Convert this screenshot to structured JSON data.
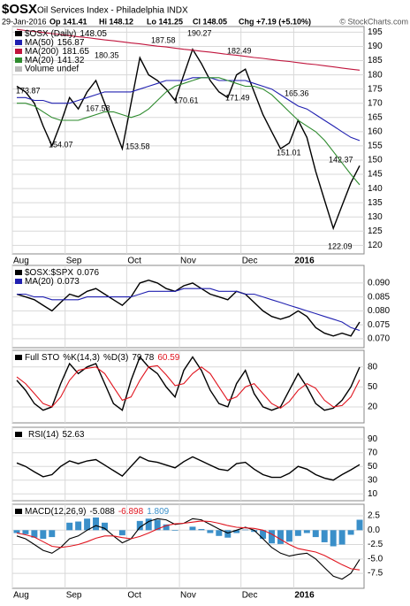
{
  "header": {
    "symbol": "$OSX",
    "name": "Oil Services Index - Philadelphia INDX",
    "date": "29-Jan-2016",
    "quote": [
      "Op 141.41",
      "Hi 148.12",
      "Lo 141.25",
      "Cl 148.05",
      "Chg +7.19 (+5.10%)"
    ],
    "copyright": "© StockCharts.com"
  },
  "chart_data": [
    {
      "type": "line",
      "categories": [
        "Aug",
        null,
        null,
        null,
        null,
        null,
        "Sep",
        null,
        null,
        null,
        null,
        null,
        null,
        "Oct",
        null,
        null,
        null,
        null,
        null,
        "Nov",
        null,
        null,
        null,
        null,
        null,
        null,
        "Dec",
        null,
        null,
        null,
        null,
        null,
        "2016",
        null,
        null,
        null,
        null,
        null,
        null,
        null
      ],
      "series": [
        {
          "name": "$OSX (Daily)",
          "color": "#000000",
          "values": [
            176,
            174,
            170,
            162,
            155,
            163,
            172,
            168,
            174,
            178,
            170,
            162,
            154,
            170,
            186,
            180,
            178,
            175,
            171,
            180,
            189,
            184,
            178,
            174,
            172,
            180,
            182,
            174,
            166,
            160,
            154,
            156,
            164,
            158,
            146,
            136,
            126,
            134,
            142,
            148.05
          ]
        },
        {
          "name": "MA(50)",
          "color": "#2020b0",
          "values": [
            172,
            172,
            171,
            171,
            170,
            170,
            170,
            171,
            172,
            173,
            174,
            174,
            174,
            174,
            175,
            176,
            177,
            178,
            178,
            178,
            179,
            179,
            179,
            178,
            178,
            178,
            178,
            177,
            176,
            175,
            173,
            171,
            169,
            168,
            166,
            164,
            162,
            160,
            158,
            156.87
          ]
        },
        {
          "name": "MA(200)",
          "color": "#c0143c",
          "values": [
            196,
            195.6,
            195.3,
            194.9,
            194.5,
            194.2,
            193.8,
            193.4,
            193.1,
            192.7,
            192.3,
            192,
            191.6,
            191.2,
            190.9,
            190.5,
            190.1,
            189.8,
            189.4,
            189,
            188.7,
            188.3,
            188,
            187.6,
            187.2,
            186.9,
            186.5,
            186.1,
            185.8,
            185.4,
            185,
            184.7,
            184.3,
            183.9,
            183.6,
            183.2,
            182.8,
            182.4,
            182,
            181.65
          ]
        },
        {
          "name": "MA(20)",
          "color": "#2e8b2e",
          "values": [
            170,
            170,
            169,
            167,
            165,
            164,
            164,
            164,
            165,
            166,
            167,
            167,
            166,
            165,
            166,
            168,
            171,
            174,
            176,
            177,
            178,
            179,
            179,
            179,
            178,
            177,
            176,
            176,
            175,
            173,
            170,
            167,
            164,
            162,
            160,
            157,
            153,
            149,
            145,
            141.32
          ]
        }
      ],
      "volume_note": "Volume undef",
      "annotations": [
        "173.87",
        "154.07",
        "167.58",
        "180.35",
        "153.58",
        "187.58",
        "170.61",
        "190.27",
        "182.49",
        "171.49",
        "165.36",
        "151.01",
        "142.37",
        "122.09"
      ],
      "ylim": [
        117,
        197
      ],
      "yticks": [
        120,
        125,
        130,
        135,
        140,
        145,
        150,
        155,
        160,
        165,
        170,
        175,
        180,
        185,
        190,
        195
      ],
      "grid": true
    },
    {
      "type": "line",
      "series": [
        {
          "name": "$OSX:$SPX",
          "color": "#000000",
          "values": [
            0.086,
            0.085,
            0.084,
            0.082,
            0.08,
            0.083,
            0.086,
            0.085,
            0.087,
            0.088,
            0.086,
            0.084,
            0.082,
            0.085,
            0.09,
            0.091,
            0.09,
            0.088,
            0.087,
            0.089,
            0.09,
            0.088,
            0.086,
            0.085,
            0.084,
            0.087,
            0.086,
            0.083,
            0.08,
            0.078,
            0.077,
            0.078,
            0.08,
            0.078,
            0.074,
            0.072,
            0.071,
            0.072,
            0.071,
            0.076
          ]
        },
        {
          "name": "MA(20)",
          "color": "#2020b0",
          "values": [
            0.086,
            0.086,
            0.085,
            0.085,
            0.084,
            0.084,
            0.084,
            0.084,
            0.085,
            0.085,
            0.085,
            0.085,
            0.085,
            0.085,
            0.086,
            0.087,
            0.087,
            0.087,
            0.087,
            0.088,
            0.088,
            0.088,
            0.088,
            0.087,
            0.087,
            0.087,
            0.086,
            0.086,
            0.085,
            0.084,
            0.083,
            0.082,
            0.081,
            0.08,
            0.079,
            0.078,
            0.077,
            0.076,
            0.074,
            0.073
          ]
        }
      ],
      "ylim": [
        0.0668,
        0.0963
      ],
      "yticks": [
        {
          "value": 0.07,
          "label": "0.070"
        },
        {
          "value": 0.075,
          "label": "0.075"
        },
        {
          "value": 0.08,
          "label": "0.080"
        },
        {
          "value": 0.085,
          "label": "0.085"
        },
        {
          "value": 0.09,
          "label": "0.090"
        }
      ],
      "grid": true
    },
    {
      "type": "line",
      "title": "Full STO",
      "series": [
        {
          "name": "%K(14,3)",
          "color": "#000000",
          "values": [
            60,
            45,
            25,
            15,
            20,
            55,
            85,
            70,
            80,
            85,
            55,
            25,
            15,
            60,
            95,
            80,
            70,
            50,
            35,
            75,
            95,
            75,
            45,
            25,
            20,
            55,
            75,
            40,
            20,
            15,
            20,
            45,
            70,
            50,
            25,
            15,
            18,
            30,
            50,
            79.78
          ]
        },
        {
          "name": "%D(3)",
          "color": "#e0141e",
          "values": [
            65,
            55,
            40,
            25,
            20,
            35,
            60,
            75,
            78,
            80,
            70,
            50,
            30,
            35,
            60,
            80,
            82,
            68,
            52,
            55,
            70,
            80,
            70,
            50,
            30,
            35,
            50,
            55,
            40,
            25,
            18,
            28,
            45,
            55,
            48,
            30,
            20,
            22,
            35,
            60.59
          ]
        }
      ],
      "ylim": [
        -4,
        105
      ],
      "yticks": [
        20,
        50,
        80
      ],
      "grid": true
    },
    {
      "type": "line",
      "series": [
        {
          "name": "RSI(14)",
          "color": "#000000",
          "values": [
            55,
            50,
            42,
            35,
            38,
            50,
            58,
            54,
            58,
            60,
            52,
            44,
            36,
            50,
            64,
            58,
            56,
            52,
            48,
            57,
            64,
            58,
            52,
            46,
            44,
            54,
            56,
            46,
            38,
            34,
            34,
            40,
            50,
            46,
            38,
            33,
            30,
            38,
            45,
            52.63
          ]
        }
      ],
      "ylim": [
        0,
        107
      ],
      "yticks": [
        10,
        30,
        50,
        70,
        90
      ],
      "grid": true
    },
    {
      "type": "line",
      "title": "MACD(12,26,9)",
      "categories": [
        "Aug",
        null,
        null,
        null,
        null,
        null,
        "Sep",
        null,
        null,
        null,
        null,
        null,
        null,
        "Oct",
        null,
        null,
        null,
        null,
        null,
        "Nov",
        null,
        null,
        null,
        null,
        null,
        null,
        "Dec",
        null,
        null,
        null,
        null,
        null,
        "2016",
        null,
        null,
        null,
        null,
        null,
        null,
        null
      ],
      "series": [
        {
          "type": "bar",
          "color": "#3a8fc9",
          "values": [
            -0.5,
            -0.7,
            -1.3,
            -1.5,
            -1.2,
            0,
            1.3,
            1.5,
            2,
            2.2,
            1.3,
            0,
            -0.9,
            0,
            1.6,
            2,
            1.8,
            1,
            -0.1,
            0,
            0.6,
            0.2,
            -0.5,
            -1,
            -1.3,
            -0.5,
            0.1,
            -0.3,
            -1.5,
            -2.3,
            -2.4,
            -2,
            -1,
            -0.5,
            -1.2,
            -2.1,
            -2.8,
            -2.5,
            -0.8,
            1.809
          ]
        },
        {
          "color": "#000000",
          "values": [
            -1,
            -1.5,
            -2.5,
            -3.5,
            -4,
            -3,
            -1.5,
            -1,
            0,
            0.8,
            0.3,
            -1,
            -2.2,
            -1.5,
            0.5,
            1.5,
            2,
            1.8,
            1,
            1.2,
            2,
            1.8,
            1,
            0.2,
            -0.5,
            0,
            0.5,
            0,
            -1.5,
            -3,
            -4,
            -4.5,
            -4.2,
            -4,
            -5,
            -6.5,
            -8,
            -8.5,
            -7.5,
            -5.088
          ]
        },
        {
          "color": "#e0141e",
          "values": [
            -0.5,
            -0.8,
            -1.2,
            -2,
            -2.8,
            -3,
            -2.8,
            -2.5,
            -2,
            -1.4,
            -1,
            -1,
            -1.3,
            -1.5,
            -1.1,
            -0.5,
            0.2,
            0.8,
            1.1,
            1.2,
            1.4,
            1.6,
            1.5,
            1.2,
            0.8,
            0.5,
            0.4,
            0.3,
            0,
            -0.7,
            -1.6,
            -2.5,
            -3.2,
            -3.5,
            -3.8,
            -4.4,
            -5.2,
            -6,
            -6.7,
            -6.898
          ]
        }
      ],
      "legend_order": [
        1,
        2,
        0
      ],
      "ylim": [
        -10.1,
        4.5
      ],
      "yticks": [
        {
          "value": -7.5,
          "label": "-7.5"
        },
        {
          "value": -5,
          "label": "-5.0"
        },
        {
          "value": -2.5,
          "label": "-2.5"
        },
        {
          "value": 0,
          "label": "0.0"
        },
        {
          "value": 2.5,
          "label": "2.5"
        }
      ],
      "grid": true
    }
  ]
}
